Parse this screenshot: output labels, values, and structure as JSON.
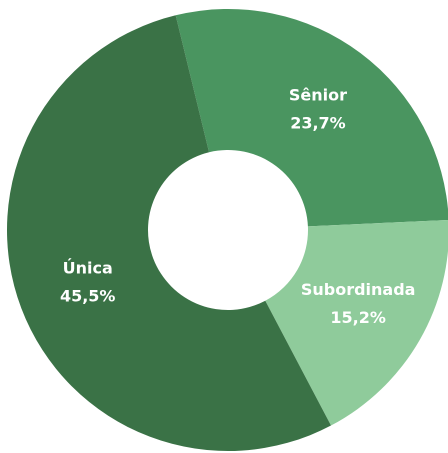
{
  "chart_data": {
    "type": "pie",
    "categories": [
      "Sênior",
      "Subordinada",
      "Única"
    ],
    "values": [
      23.7,
      15.2,
      45.5
    ],
    "value_labels": [
      "23,7%",
      "15,2%",
      "45,5%"
    ],
    "colors": [
      "#4a9560",
      "#8fcb9b",
      "#3a7246"
    ]
  }
}
